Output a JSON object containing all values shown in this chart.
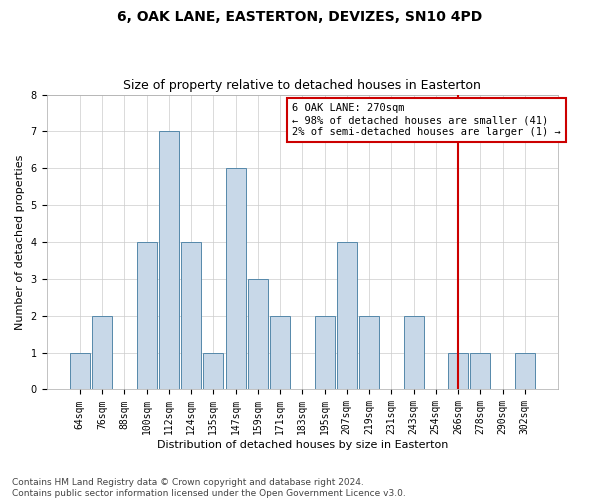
{
  "title": "6, OAK LANE, EASTERTON, DEVIZES, SN10 4PD",
  "subtitle": "Size of property relative to detached houses in Easterton",
  "xlabel": "Distribution of detached houses by size in Easterton",
  "ylabel": "Number of detached properties",
  "categories": [
    "64sqm",
    "76sqm",
    "88sqm",
    "100sqm",
    "112sqm",
    "124sqm",
    "135sqm",
    "147sqm",
    "159sqm",
    "171sqm",
    "183sqm",
    "195sqm",
    "207sqm",
    "219sqm",
    "231sqm",
    "243sqm",
    "254sqm",
    "266sqm",
    "278sqm",
    "290sqm",
    "302sqm"
  ],
  "values": [
    1,
    2,
    0,
    4,
    7,
    4,
    1,
    6,
    3,
    2,
    0,
    2,
    4,
    2,
    0,
    2,
    0,
    1,
    1,
    0,
    1
  ],
  "bar_color": "#c8d8e8",
  "bar_edge_color": "#5588aa",
  "grid_color": "#cccccc",
  "background_color": "#ffffff",
  "annotation_line1": "6 OAK LANE: 270sqm",
  "annotation_line2": "← 98% of detached houses are smaller (41)",
  "annotation_line3": "2% of semi-detached houses are larger (1) →",
  "annotation_box_color": "#cc0000",
  "vline_x_index": 17.5,
  "ylim": [
    0,
    8
  ],
  "yticks": [
    0,
    1,
    2,
    3,
    4,
    5,
    6,
    7,
    8
  ],
  "footnote": "Contains HM Land Registry data © Crown copyright and database right 2024.\nContains public sector information licensed under the Open Government Licence v3.0.",
  "title_fontsize": 10,
  "subtitle_fontsize": 9,
  "ylabel_fontsize": 8,
  "xlabel_fontsize": 8,
  "tick_fontsize": 7,
  "annotation_fontsize": 7.5,
  "footnote_fontsize": 6.5
}
